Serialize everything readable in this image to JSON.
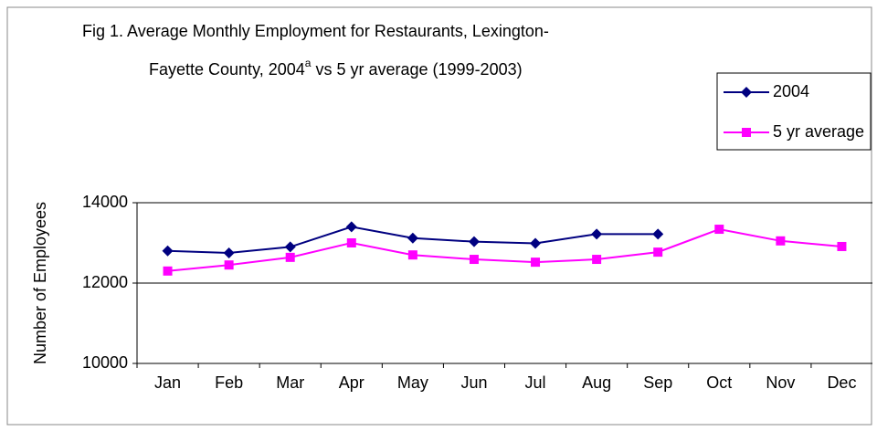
{
  "chart_data": {
    "type": "line",
    "title": {
      "line1": "Fig 1. Average Monthly Employment for Restaurants, Lexington-",
      "line2": "Fayette County, 2004",
      "superscript": "a",
      "line2_end": "vs 5 yr average (1999-2003)"
    },
    "y_label": "Number of Employees",
    "categories": [
      "Jan",
      "Feb",
      "Mar",
      "Apr",
      "May",
      "Jun",
      "Jul",
      "Aug",
      "Sep",
      "Oct",
      "Nov",
      "Dec"
    ],
    "series": [
      {
        "name": "2004",
        "color": "#000080",
        "marker": "diamond",
        "values": [
          12800,
          12750,
          12900,
          13400,
          13120,
          13030,
          12990,
          13220,
          13220,
          null,
          null,
          null
        ]
      },
      {
        "name": "5 yr average",
        "color": "#ff00ff",
        "marker": "square",
        "values": [
          12300,
          12450,
          12640,
          13000,
          12700,
          12590,
          12520,
          12590,
          12770,
          13340,
          13050,
          12910
        ]
      }
    ],
    "ylim": [
      10000,
      14000
    ],
    "yticks": [
      10000,
      12000,
      14000
    ],
    "grid": true,
    "legend": "top-right"
  }
}
